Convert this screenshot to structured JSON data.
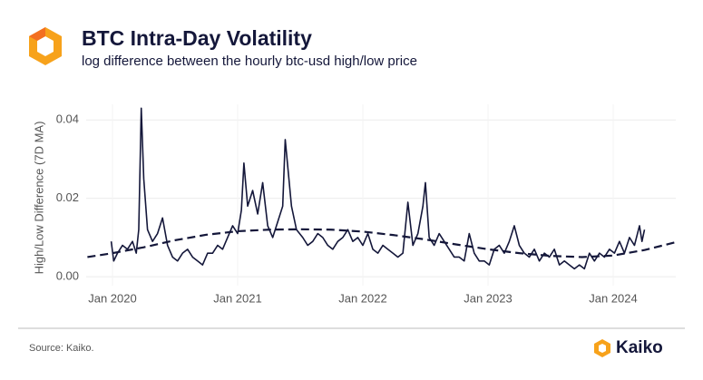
{
  "chart_data": {
    "type": "line",
    "title": "BTC Intra-Day Volatility",
    "subtitle": "log difference between the hourly btc-usd high/low price",
    "ylabel": "High/Low Difference (7D MA)",
    "source": "Source: Kaiko.",
    "brand": "Kaiko",
    "xlim": [
      2019.79,
      2024.5
    ],
    "xticks": [
      {
        "value": 2020,
        "label": "Jan 2020"
      },
      {
        "value": 2021,
        "label": "Jan 2021"
      },
      {
        "value": 2022,
        "label": "Jan 2022"
      },
      {
        "value": 2023,
        "label": "Jan 2023"
      },
      {
        "value": 2024,
        "label": "Jan 2024"
      }
    ],
    "ylim": [
      -0.0023,
      0.044
    ],
    "yticks": [
      {
        "value": 0,
        "label": "0.00"
      },
      {
        "value": 0.02,
        "label": "0.02"
      },
      {
        "value": 0.04,
        "label": "0.04"
      }
    ],
    "grid": true,
    "series": [
      {
        "color": "#14173a",
        "dash": false,
        "x": [
          2019.99,
          2020.01,
          2020.04,
          2020.08,
          2020.12,
          2020.16,
          2020.19,
          2020.21,
          2020.23,
          2020.25,
          2020.28,
          2020.32,
          2020.36,
          2020.4,
          2020.44,
          2020.48,
          2020.52,
          2020.56,
          2020.6,
          2020.64,
          2020.68,
          2020.72,
          2020.76,
          2020.8,
          2020.84,
          2020.88,
          2020.92,
          2020.96,
          2021.0,
          2021.03,
          2021.05,
          2021.08,
          2021.12,
          2021.16,
          2021.2,
          2021.24,
          2021.28,
          2021.32,
          2021.36,
          2021.38,
          2021.43,
          2021.47,
          2021.52,
          2021.56,
          2021.6,
          2021.64,
          2021.68,
          2021.72,
          2021.76,
          2021.8,
          2021.84,
          2021.88,
          2021.92,
          2021.96,
          2022.0,
          2022.04,
          2022.08,
          2022.12,
          2022.16,
          2022.2,
          2022.24,
          2022.28,
          2022.32,
          2022.36,
          2022.4,
          2022.44,
          2022.48,
          2022.5,
          2022.53,
          2022.57,
          2022.61,
          2022.65,
          2022.69,
          2022.73,
          2022.77,
          2022.81,
          2022.85,
          2022.89,
          2022.93,
          2022.97,
          2023.01,
          2023.05,
          2023.09,
          2023.13,
          2023.17,
          2023.21,
          2023.25,
          2023.29,
          2023.33,
          2023.37,
          2023.41,
          2023.45,
          2023.49,
          2023.53,
          2023.57,
          2023.61,
          2023.65,
          2023.69,
          2023.73,
          2023.77,
          2023.81,
          2023.85,
          2023.89,
          2023.93,
          2023.97,
          2024.01,
          2024.05,
          2024.09,
          2024.13,
          2024.17,
          2024.21,
          2024.23,
          2024.25
        ],
        "values": [
          0.009,
          0.004,
          0.006,
          0.008,
          0.007,
          0.009,
          0.006,
          0.012,
          0.043,
          0.025,
          0.012,
          0.009,
          0.011,
          0.015,
          0.008,
          0.005,
          0.004,
          0.006,
          0.007,
          0.005,
          0.004,
          0.003,
          0.006,
          0.006,
          0.008,
          0.007,
          0.01,
          0.013,
          0.011,
          0.017,
          0.029,
          0.018,
          0.022,
          0.016,
          0.024,
          0.013,
          0.01,
          0.014,
          0.018,
          0.035,
          0.018,
          0.012,
          0.01,
          0.008,
          0.009,
          0.011,
          0.01,
          0.008,
          0.007,
          0.009,
          0.01,
          0.012,
          0.009,
          0.01,
          0.008,
          0.011,
          0.007,
          0.006,
          0.008,
          0.007,
          0.006,
          0.005,
          0.006,
          0.019,
          0.008,
          0.011,
          0.018,
          0.024,
          0.01,
          0.008,
          0.011,
          0.009,
          0.007,
          0.005,
          0.005,
          0.004,
          0.011,
          0.006,
          0.004,
          0.004,
          0.003,
          0.007,
          0.008,
          0.006,
          0.009,
          0.013,
          0.008,
          0.006,
          0.005,
          0.007,
          0.004,
          0.006,
          0.005,
          0.007,
          0.003,
          0.004,
          0.003,
          0.002,
          0.003,
          0.002,
          0.006,
          0.004,
          0.006,
          0.005,
          0.007,
          0.006,
          0.009,
          0.006,
          0.01,
          0.008,
          0.013,
          0.009,
          0.012
        ]
      },
      {
        "color": "#14173a",
        "dash": true,
        "x": [
          2019.8,
          2020.0,
          2020.25,
          2020.5,
          2020.75,
          2021.0,
          2021.25,
          2021.5,
          2021.75,
          2022.0,
          2022.25,
          2022.5,
          2022.75,
          2023.0,
          2023.25,
          2023.5,
          2023.75,
          2024.0,
          2024.25,
          2024.5
        ],
        "values": [
          0.005,
          0.006,
          0.0075,
          0.0093,
          0.0107,
          0.0116,
          0.012,
          0.0121,
          0.012,
          0.0115,
          0.0106,
          0.0095,
          0.0082,
          0.007,
          0.006,
          0.0053,
          0.005,
          0.0054,
          0.0068,
          0.0088
        ]
      }
    ]
  }
}
